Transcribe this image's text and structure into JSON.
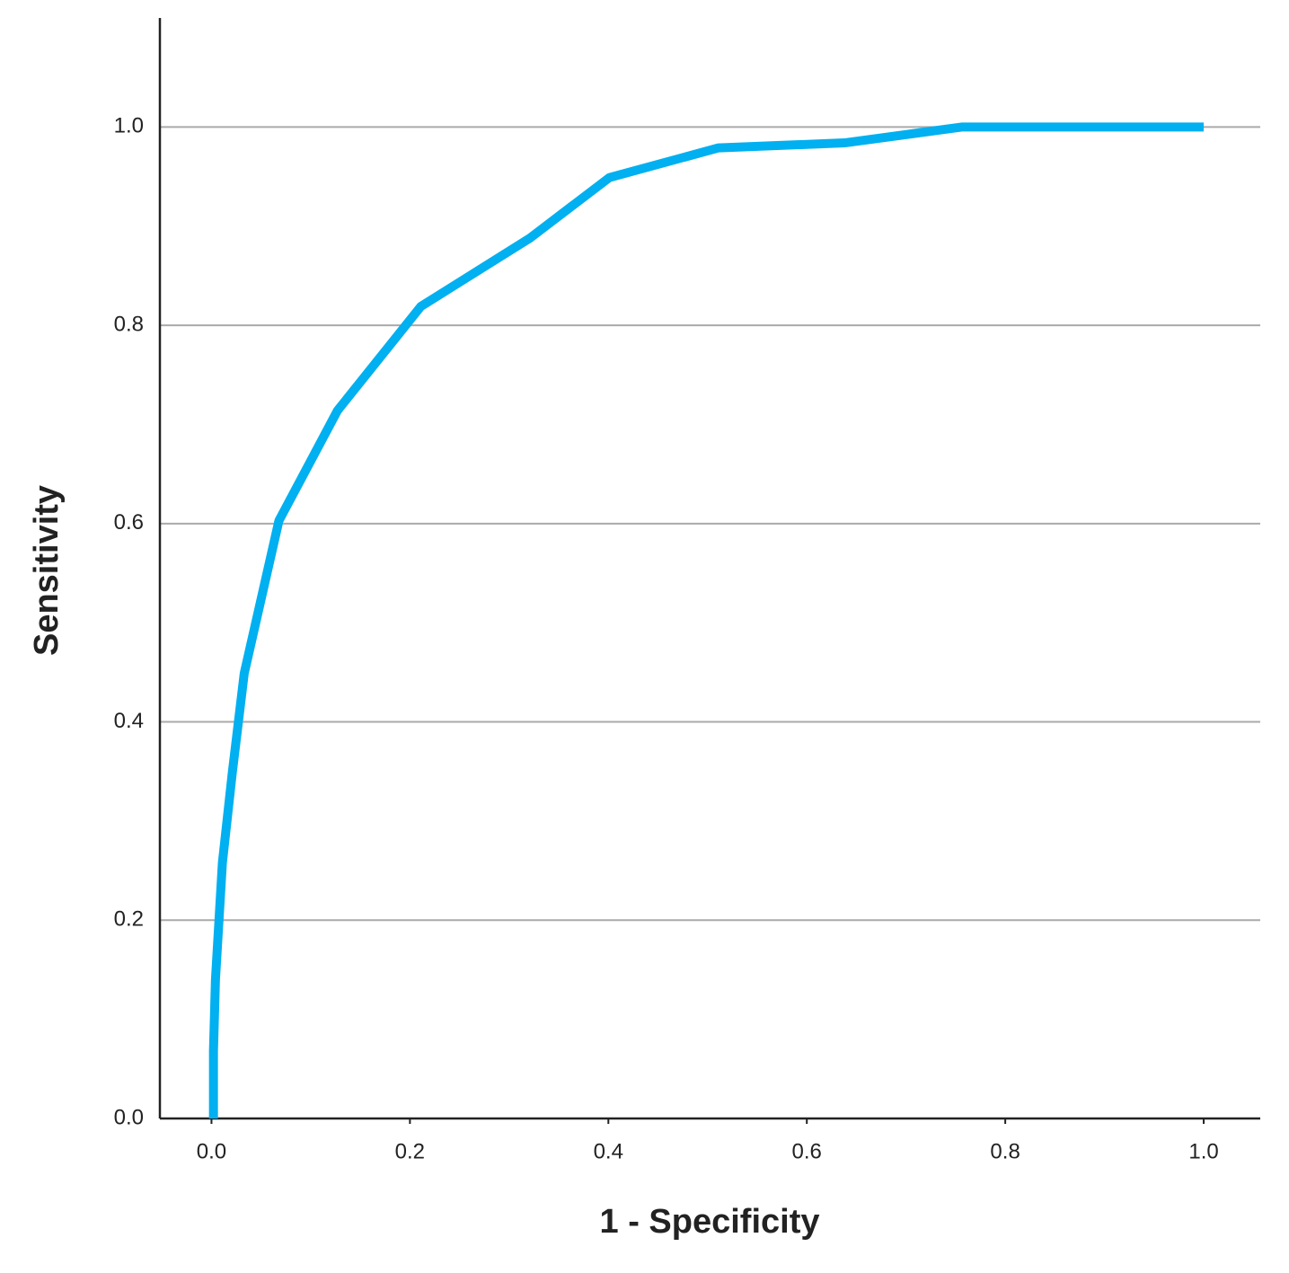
{
  "chart_data": {
    "type": "line",
    "x_label": "1 - Specificity",
    "y_label": "Sensitivity",
    "x": [
      0.002,
      0.002,
      0.004,
      0.011,
      0.021,
      0.033,
      0.068,
      0.127,
      0.211,
      0.321,
      0.401,
      0.511,
      0.638,
      0.756,
      1.0
    ],
    "series": [
      {
        "color": "#00b0f0",
        "values": [
          0,
          0.068,
          0.14,
          0.258,
          0.349,
          0.449,
          0.603,
          0.714,
          0.819,
          0.888,
          0.949,
          0.979,
          0.984,
          1.0,
          1.0
        ]
      }
    ],
    "xlim": [
      -0.052,
      1.057
    ],
    "ylim": [
      0,
      1.11
    ],
    "xticks": [
      {
        "value": 0,
        "label": "0.0"
      },
      0.2,
      0.4,
      0.6,
      0.8,
      {
        "value": 1,
        "label": "1.0"
      }
    ],
    "yticks": [
      {
        "value": 0,
        "label": "0.0"
      },
      0.2,
      0.4,
      0.6,
      0.8,
      {
        "value": 1,
        "label": "1.0"
      }
    ],
    "grid": true
  }
}
